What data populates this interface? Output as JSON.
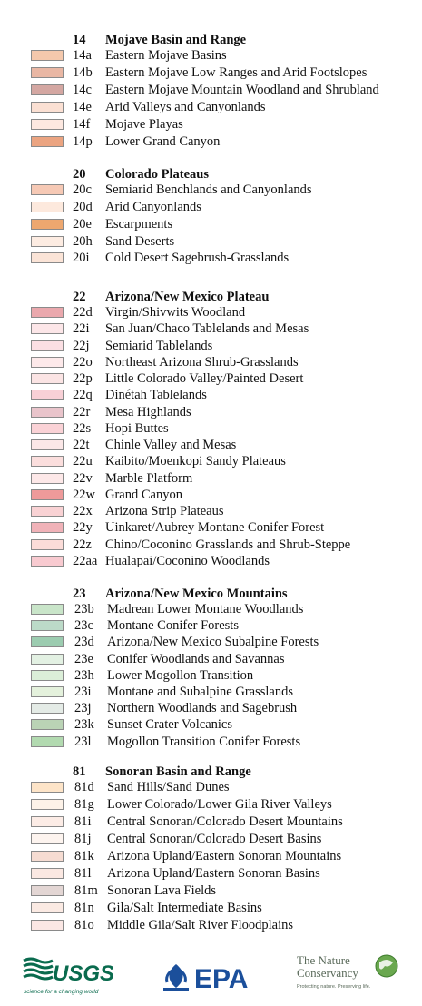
{
  "legend": {
    "groups": [
      {
        "code": "14",
        "name": "Mojave Basin and Range",
        "items": [
          {
            "code": "14a",
            "name": "Eastern Mojave Basins",
            "color": "#f4c8ac"
          },
          {
            "code": "14b",
            "name": "Eastern Mojave Low Ranges and Arid Footslopes",
            "color": "#e9b7a4"
          },
          {
            "code": "14c",
            "name": "Eastern Mojave Mountain Woodland and Shrubland",
            "color": "#d4a7a2"
          },
          {
            "code": "14e",
            "name": "Arid Valleys and Canyonlands",
            "color": "#fbe0d3"
          },
          {
            "code": "14f",
            "name": "Mojave Playas",
            "color": "#fde8e0"
          },
          {
            "code": "14p",
            "name": "Lower Grand Canyon",
            "color": "#eba481"
          }
        ]
      },
      {
        "code": "20",
        "name": "Colorado Plateaus",
        "items": [
          {
            "code": "20c",
            "name": "Semiarid Benchlands and Canyonlands",
            "color": "#f6c9b5"
          },
          {
            "code": "20d",
            "name": "Arid Canyonlands",
            "color": "#fde9dd"
          },
          {
            "code": "20e",
            "name": "Escarpments",
            "color": "#eda76f"
          },
          {
            "code": "20h",
            "name": "Sand Deserts",
            "color": "#fdece2"
          },
          {
            "code": "20i",
            "name": "Cold Desert Sagebrush-Grasslands",
            "color": "#fbe4d7"
          }
        ]
      },
      {
        "code": "22",
        "name": "Arizona/New Mexico Plateau",
        "items": [
          {
            "code": "22d",
            "name": "Virgin/Shivwits Woodland",
            "color": "#eaa8ad"
          },
          {
            "code": "22i",
            "name": "San Juan/Chaco Tablelands and Mesas",
            "color": "#fce6e8"
          },
          {
            "code": "22j",
            "name": "Semiarid Tablelands",
            "color": "#fbdfe3"
          },
          {
            "code": "22o",
            "name": "Northeast Arizona Shrub-Grasslands",
            "color": "#fde9ea"
          },
          {
            "code": "22p",
            "name": "Little Colorado Valley/Painted Desert",
            "color": "#fbe4e4"
          },
          {
            "code": "22q",
            "name": "Dinétah Tablelands",
            "color": "#f8d0d6"
          },
          {
            "code": "22r",
            "name": "Mesa Highlands",
            "color": "#e9c4cb"
          },
          {
            "code": "22s",
            "name": "Hopi Buttes",
            "color": "#fad2d6"
          },
          {
            "code": "22t",
            "name": "Chinle Valley and Mesas",
            "color": "#fbe7e7"
          },
          {
            "code": "22u",
            "name": "Kaibito/Moenkopi Sandy Plateaus",
            "color": "#fbdedd"
          },
          {
            "code": "22v",
            "name": "Marble Platform",
            "color": "#fde8e8"
          },
          {
            "code": "22w",
            "name": "Grand Canyon",
            "color": "#ee9a9a"
          },
          {
            "code": "22x",
            "name": "Arizona Strip Plateaus",
            "color": "#f9d2d4"
          },
          {
            "code": "22y",
            "name": "Uinkaret/Aubrey Montane Conifer Forest",
            "color": "#f0b2b8"
          },
          {
            "code": "22z",
            "name": "Chino/Coconino Grasslands and Shrub-Steppe",
            "color": "#fbdcd8"
          },
          {
            "code": "22aa",
            "name": "Hualapai/Coconino Woodlands",
            "color": "#f8cad0"
          }
        ]
      },
      {
        "code": "23",
        "name": "Arizona/New Mexico Mountains",
        "items": [
          {
            "code": "23b",
            "name": "Madrean Lower Montane Woodlands",
            "color": "#c9e5c9"
          },
          {
            "code": "23c",
            "name": "Montane Conifer Forests",
            "color": "#bcdac8"
          },
          {
            "code": "23d",
            "name": "Arizona/New Mexico Subalpine Forests",
            "color": "#9cccb0"
          },
          {
            "code": "23e",
            "name": "Conifer Woodlands and Savannas",
            "color": "#e3f1e3"
          },
          {
            "code": "23h",
            "name": "Lower Mogollon Transition",
            "color": "#dbeed8"
          },
          {
            "code": "23i",
            "name": "Montane and Subalpine Grasslands",
            "color": "#e4f1dc"
          },
          {
            "code": "23j",
            "name": "Northern Woodlands and Sagebrush",
            "color": "#e4ebe6"
          },
          {
            "code": "23k",
            "name": "Sunset Crater Volcanics",
            "color": "#bad3b5"
          },
          {
            "code": "23l",
            "name": "Mogollon Transition Conifer Forests",
            "color": "#b2dab0"
          }
        ]
      },
      {
        "code": "81",
        "name": "Sonoran Basin and Range",
        "items": [
          {
            "code": "81d",
            "name": "Sand Hills/Sand Dunes",
            "color": "#fde4c8"
          },
          {
            "code": "81g",
            "name": "Lower Colorado/Lower Gila River Valleys",
            "color": "#fdf2e8"
          },
          {
            "code": "81i",
            "name": "Central Sonoran/Colorado Desert Mountains",
            "color": "#fcece6"
          },
          {
            "code": "81j",
            "name": "Central Sonoran/Colorado Desert Basins",
            "color": "#fdf4ef"
          },
          {
            "code": "81k",
            "name": "Arizona Upland/Eastern Sonoran Mountains",
            "color": "#f6dcd2"
          },
          {
            "code": "81l",
            "name": "Arizona Upland/Eastern Sonoran Basins",
            "color": "#fbe8e2"
          },
          {
            "code": "81m",
            "name": "Sonoran Lava Fields",
            "color": "#e3d6d4"
          },
          {
            "code": "81n",
            "name": "Gila/Salt Intermediate Basins",
            "color": "#fbeae3"
          },
          {
            "code": "81o",
            "name": "Middle Gila/Salt River Floodplains",
            "color": "#fbe7e4"
          }
        ]
      }
    ]
  },
  "logos": {
    "usgs": {
      "name": "USGS",
      "tagline": "science for a changing world",
      "color": "#0a6b4e"
    },
    "epa": {
      "name": "EPA",
      "color": "#1b4f9b"
    },
    "tnc": {
      "line1": "The Nature",
      "line2": "Conservancy",
      "tagline": "Protecting nature. Preserving life.",
      "color": "#5b6e5b",
      "globe": "#6aa84f"
    }
  }
}
